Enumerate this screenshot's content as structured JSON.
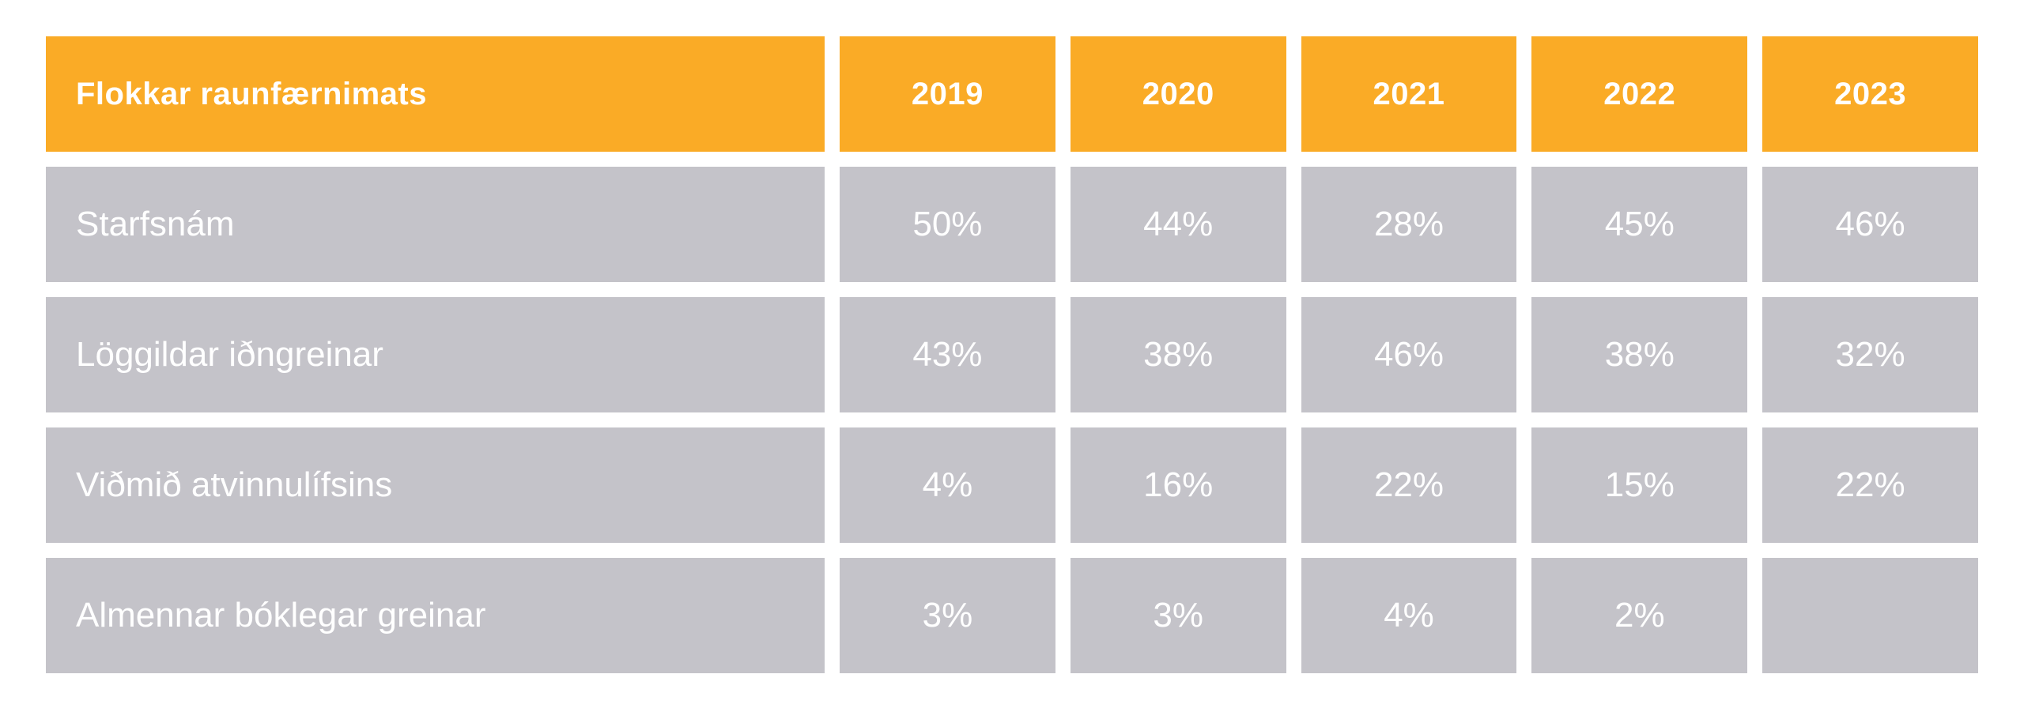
{
  "table": {
    "header": {
      "label": "Flokkar raunfærnimats",
      "years": [
        "2019",
        "2020",
        "2021",
        "2022",
        "2023"
      ]
    },
    "rows": [
      {
        "label": "Starfsnám",
        "values": [
          "50%",
          "44%",
          "28%",
          "45%",
          "46%"
        ]
      },
      {
        "label": "Löggildar iðngreinar",
        "values": [
          "43%",
          "38%",
          "46%",
          "38%",
          "32%"
        ]
      },
      {
        "label": "Viðmið atvinnulífsins",
        "values": [
          "4%",
          "16%",
          "22%",
          "15%",
          "22%"
        ]
      },
      {
        "label": "Almennar bóklegar greinar",
        "values": [
          "3%",
          "3%",
          "4%",
          "2%",
          ""
        ]
      }
    ]
  },
  "colors": {
    "header_bg": "#FAAB26",
    "cell_bg": "#C4C3C9",
    "text": "#FFFFFF",
    "page_bg": "#FFFFFF"
  },
  "chart_data": {
    "type": "table",
    "title": "Flokkar raunfærnimats",
    "categories": [
      "2019",
      "2020",
      "2021",
      "2022",
      "2023"
    ],
    "unit": "%",
    "series": [
      {
        "name": "Starfsnám",
        "values": [
          50,
          44,
          28,
          45,
          46
        ]
      },
      {
        "name": "Löggildar iðngreinar",
        "values": [
          43,
          38,
          46,
          38,
          32
        ]
      },
      {
        "name": "Viðmið atvinnulífsins",
        "values": [
          4,
          16,
          22,
          15,
          22
        ]
      },
      {
        "name": "Almennar bóklegar greinar",
        "values": [
          3,
          3,
          4,
          2,
          null
        ]
      }
    ],
    "notes": "Cell for Almennar bóklegar greinar / 2023 is blank in source"
  }
}
